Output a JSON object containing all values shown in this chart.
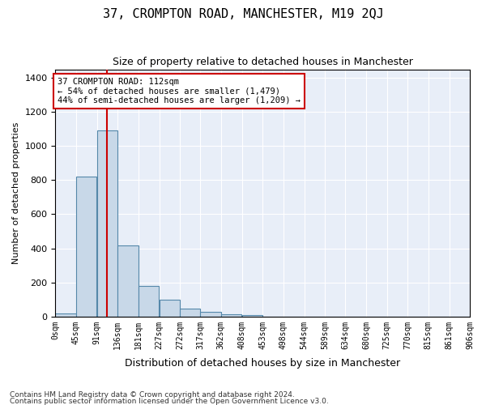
{
  "title": "37, CROMPTON ROAD, MANCHESTER, M19 2QJ",
  "subtitle": "Size of property relative to detached houses in Manchester",
  "xlabel": "Distribution of detached houses by size in Manchester",
  "ylabel": "Number of detached properties",
  "property_size": 112,
  "annotation_line1": "37 CROMPTON ROAD: 112sqm",
  "annotation_line2": "← 54% of detached houses are smaller (1,479)",
  "annotation_line3": "44% of semi-detached houses are larger (1,209) →",
  "footer_line1": "Contains HM Land Registry data © Crown copyright and database right 2024.",
  "footer_line2": "Contains public sector information licensed under the Open Government Licence v3.0.",
  "bar_color": "#c8d8e8",
  "bar_edge_color": "#5588aa",
  "red_line_color": "#cc0000",
  "annotation_box_color": "#cc0000",
  "background_color": "#e8eef8",
  "bin_edges": [
    0,
    45,
    91,
    136,
    181,
    227,
    272,
    317,
    362,
    408,
    453,
    498,
    544,
    589,
    634,
    680,
    725,
    770,
    815,
    861,
    906
  ],
  "bin_counts": [
    20,
    820,
    1090,
    415,
    180,
    100,
    48,
    28,
    15,
    7,
    0,
    0,
    0,
    0,
    0,
    0,
    0,
    0,
    0,
    0
  ],
  "ylim": [
    0,
    1450
  ],
  "yticks": [
    0,
    200,
    400,
    600,
    800,
    1000,
    1200,
    1400
  ],
  "tick_labels": [
    "0sqm",
    "45sqm",
    "91sqm",
    "136sqm",
    "181sqm",
    "227sqm",
    "272sqm",
    "317sqm",
    "362sqm",
    "408sqm",
    "453sqm",
    "498sqm",
    "544sqm",
    "589sqm",
    "634sqm",
    "680sqm",
    "725sqm",
    "770sqm",
    "815sqm",
    "861sqm",
    "906sqm"
  ]
}
